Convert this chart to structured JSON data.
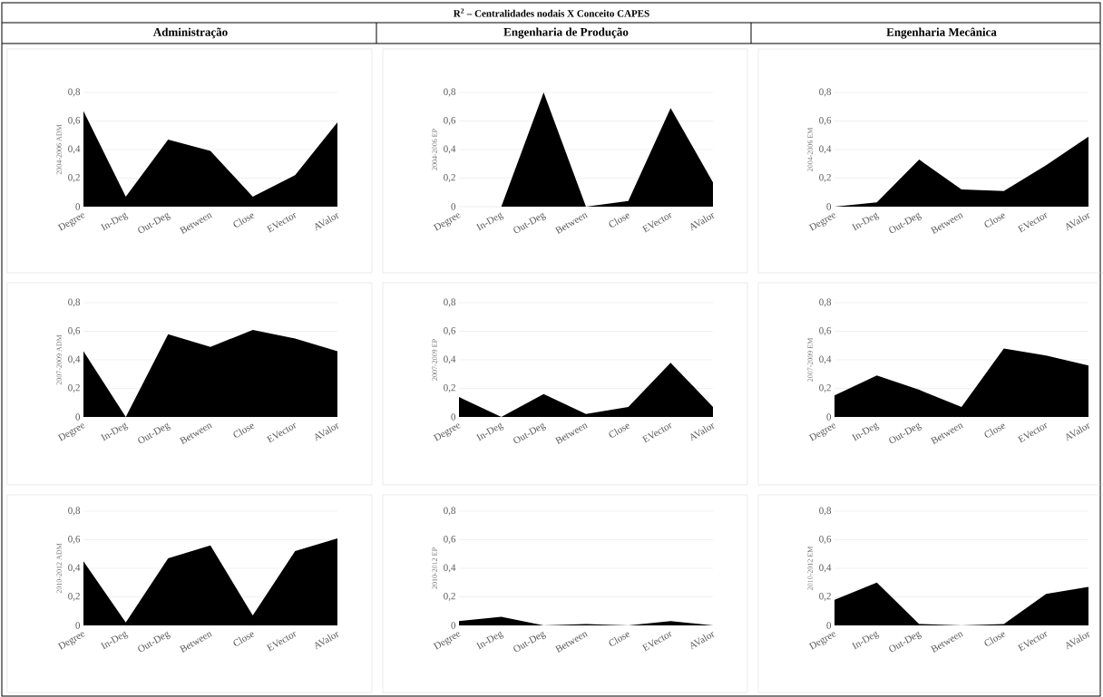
{
  "chart_data": [
    {
      "type": "other",
      "title": "R$^{2}$ – Centralidades nodais X Conceito CAPES",
      "annotations": [
        "Administração",
        "Engenharia de Produção",
        "Engenharia Mecânica"
      ]
    },
    {
      "type": "area",
      "ylabel": "2004-2006 ADM",
      "categories": [
        "Degree",
        "In-Deg",
        "Out-Deg",
        "Between",
        "Close",
        "EVector",
        "AValor"
      ],
      "values": [
        0.67,
        0.07,
        0.47,
        0.39,
        0.07,
        0.22,
        0.59
      ],
      "color": "#000000",
      "ylim": [
        0,
        0.8
      ],
      "yticks": [
        0,
        {
          "value": 0.2,
          "label": "0,2"
        },
        {
          "value": 0.4,
          "label": "0,4"
        },
        {
          "value": 0.6,
          "label": "0,6"
        },
        {
          "value": 0.8,
          "label": "0,8"
        }
      ],
      "grid": "y"
    },
    {
      "type": "area",
      "ylabel": "2004-2006 EP",
      "categories": [
        "Degree",
        "In-Deg",
        "Out-Deg",
        "Between",
        "Close",
        "EVector",
        "AValor"
      ],
      "values": [
        0,
        0,
        0.8,
        0,
        0.04,
        0.69,
        0.17
      ],
      "color": "#000000",
      "ylim": [
        0,
        0.8
      ],
      "yticks": [
        0,
        {
          "value": 0.2,
          "label": "0,2"
        },
        {
          "value": 0.4,
          "label": "0,4"
        },
        {
          "value": 0.6,
          "label": "0,6"
        },
        {
          "value": 0.8,
          "label": "0,8"
        }
      ],
      "grid": "y"
    },
    {
      "type": "area",
      "ylabel": "2004-2006 EM",
      "categories": [
        "Degree",
        "In-Deg",
        "Out-Deg",
        "Between",
        "Close",
        "EVector",
        "AValor"
      ],
      "values": [
        0,
        0.03,
        0.33,
        0.12,
        0.11,
        0.29,
        0.49
      ],
      "color": "#000000",
      "ylim": [
        0,
        0.8
      ],
      "yticks": [
        0,
        {
          "value": 0.2,
          "label": "0,2"
        },
        {
          "value": 0.4,
          "label": "0,4"
        },
        {
          "value": 0.6,
          "label": "0,6"
        },
        {
          "value": 0.8,
          "label": "0,8"
        }
      ],
      "grid": "y"
    },
    {
      "type": "area",
      "ylabel": "2007-2009 ADM",
      "categories": [
        "Degree",
        "In-Deg",
        "Out-Deg",
        "Between",
        "Close",
        "EVector",
        "AValor"
      ],
      "values": [
        0.46,
        0,
        0.58,
        0.49,
        0.61,
        0.55,
        0.46
      ],
      "color": "#000000",
      "ylim": [
        0,
        0.8
      ],
      "yticks": [
        0,
        {
          "value": 0.2,
          "label": "0,2"
        },
        {
          "value": 0.4,
          "label": "0,4"
        },
        {
          "value": 0.6,
          "label": "0,6"
        },
        {
          "value": 0.8,
          "label": "0,8"
        }
      ],
      "grid": "y"
    },
    {
      "type": "area",
      "ylabel": "2007-2009 EP",
      "categories": [
        "Degree",
        "In-Deg",
        "Out-Deg",
        "Between",
        "Close",
        "EVector",
        "AValor"
      ],
      "values": [
        0.14,
        0,
        0.16,
        0.02,
        0.07,
        0.38,
        0.07
      ],
      "color": "#000000",
      "ylim": [
        0,
        0.8
      ],
      "yticks": [
        0,
        {
          "value": 0.2,
          "label": "0,2"
        },
        {
          "value": 0.4,
          "label": "0,4"
        },
        {
          "value": 0.6,
          "label": "0,6"
        },
        {
          "value": 0.8,
          "label": "0,8"
        }
      ],
      "grid": "y"
    },
    {
      "type": "area",
      "ylabel": "2007-2009 EM",
      "categories": [
        "Degree",
        "In-Deg",
        "Out-Deg",
        "Between",
        "Close",
        "EVector",
        "AValor"
      ],
      "values": [
        0.15,
        0.29,
        0.19,
        0.07,
        0.48,
        0.43,
        0.36
      ],
      "color": "#000000",
      "ylim": [
        0,
        0.8
      ],
      "yticks": [
        0,
        {
          "value": 0.2,
          "label": "0,2"
        },
        {
          "value": 0.4,
          "label": "0,4"
        },
        {
          "value": 0.6,
          "label": "0,6"
        },
        {
          "value": 0.8,
          "label": "0,8"
        }
      ],
      "grid": "y"
    },
    {
      "type": "area",
      "ylabel": "2010-2012 ADM",
      "categories": [
        "Degree",
        "In-Deg",
        "Out-Deg",
        "Between",
        "Close",
        "EVector",
        "AValor"
      ],
      "values": [
        0.45,
        0.02,
        0.47,
        0.56,
        0.07,
        0.52,
        0.61
      ],
      "color": "#000000",
      "ylim": [
        0,
        0.8
      ],
      "yticks": [
        0,
        {
          "value": 0.2,
          "label": "0,2"
        },
        {
          "value": 0.4,
          "label": "0,4"
        },
        {
          "value": 0.6,
          "label": "0,6"
        },
        {
          "value": 0.8,
          "label": "0,8"
        }
      ],
      "grid": "y"
    },
    {
      "type": "area",
      "ylabel": "2010-2012 EP",
      "categories": [
        "Degree",
        "In-Deg",
        "Out-Deg",
        "Between",
        "Close",
        "EVector",
        "AValor"
      ],
      "values": [
        0.03,
        0.06,
        0,
        0.01,
        0,
        0.03,
        0
      ],
      "color": "#000000",
      "ylim": [
        0,
        0.8
      ],
      "yticks": [
        0,
        {
          "value": 0.2,
          "label": "0,2"
        },
        {
          "value": 0.4,
          "label": "0,4"
        },
        {
          "value": 0.6,
          "label": "0,6"
        },
        {
          "value": 0.8,
          "label": "0,8"
        }
      ],
      "grid": "y"
    },
    {
      "type": "area",
      "ylabel": "2010-2012 EM",
      "categories": [
        "Degree",
        "In-Deg",
        "Out-Deg",
        "Between",
        "Close",
        "EVector",
        "AValor"
      ],
      "values": [
        0.18,
        0.3,
        0.01,
        0,
        0.01,
        0.22,
        0.27
      ],
      "color": "#000000",
      "ylim": [
        0,
        0.8
      ],
      "yticks": [
        0,
        {
          "value": 0.2,
          "label": "0,2"
        },
        {
          "value": 0.4,
          "label": "0,4"
        },
        {
          "value": 0.6,
          "label": "0,6"
        },
        {
          "value": 0.8,
          "label": "0,8"
        }
      ],
      "grid": "y"
    }
  ]
}
